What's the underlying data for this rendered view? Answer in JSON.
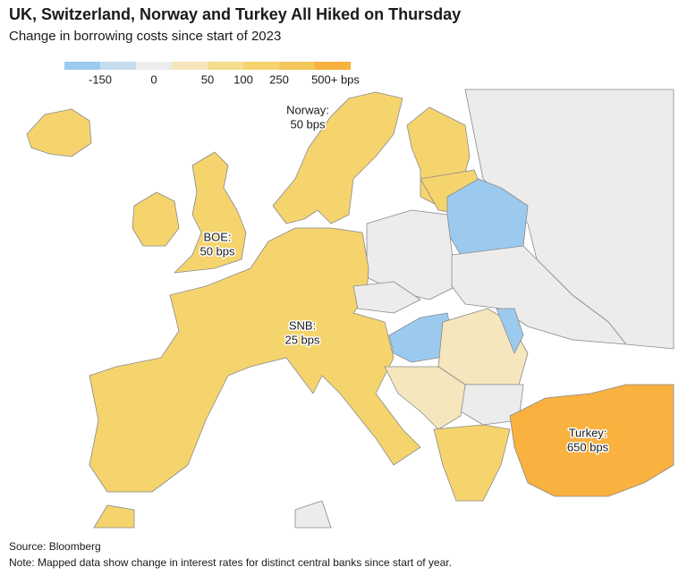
{
  "header": {
    "title": "UK, Switzerland, Norway and Turkey All Hiked on Thursday",
    "subtitle": "Change in borrowing costs since start of 2023"
  },
  "legend": {
    "colors": [
      "#9ccaef",
      "#c6dcef",
      "#ececec",
      "#f6e6bd",
      "#f5dd8f",
      "#f5d46e",
      "#f5c65a",
      "#f9b13f"
    ],
    "labels": [
      "-150",
      "0",
      "50",
      "100",
      "250",
      "500+ bps"
    ]
  },
  "annotations": [
    {
      "lines": [
        "Norway:",
        "50 bps"
      ]
    },
    {
      "lines": [
        "BOE:",
        "50 bps"
      ]
    },
    {
      "lines": [
        "SNB:",
        "25 bps"
      ]
    },
    {
      "lines": [
        "Turkey:",
        "650 bps"
      ]
    }
  ],
  "footer": {
    "source": "Source: Bloomberg",
    "note": "Note: Mapped data show change in interest rates for distinct central banks since start of year."
  }
}
